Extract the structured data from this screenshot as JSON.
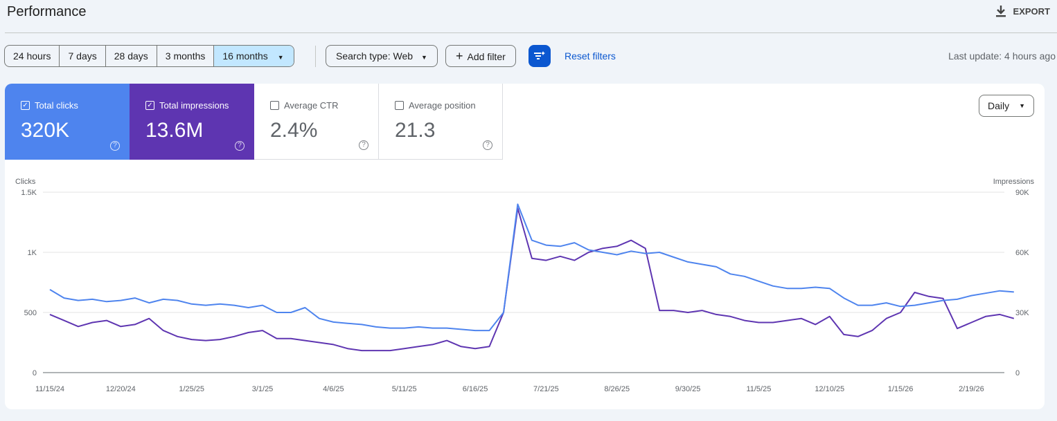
{
  "header": {
    "title": "Performance",
    "export_label": "EXPORT"
  },
  "filters": {
    "ranges": [
      "24 hours",
      "7 days",
      "28 days",
      "3 months",
      "16 months"
    ],
    "selected_range": "16 months",
    "search_type": "Search type: Web",
    "add_filter": "Add filter",
    "reset": "Reset filters",
    "last_update": "Last update: 4 hours ago"
  },
  "metrics": [
    {
      "label": "Total clicks",
      "value": "320K",
      "checked": true,
      "color": "#4e84ee"
    },
    {
      "label": "Total impressions",
      "value": "13.6M",
      "checked": true,
      "color": "#5e35b1"
    },
    {
      "label": "Average CTR",
      "value": "2.4%",
      "checked": false
    },
    {
      "label": "Average position",
      "value": "21.3",
      "checked": false
    }
  ],
  "granularity": "Daily",
  "chart_data": {
    "type": "line",
    "left_axis_label": "Clicks",
    "right_axis_label": "Impressions",
    "left_ticks": [
      "0",
      "500",
      "1K",
      "1.5K"
    ],
    "left_range": [
      0,
      1500
    ],
    "right_ticks": [
      "0",
      "30K",
      "60K",
      "90K"
    ],
    "right_range": [
      0,
      90000
    ],
    "x_ticks": [
      "11/15/24",
      "12/20/24",
      "1/25/25",
      "3/1/25",
      "4/6/25",
      "5/11/25",
      "6/16/25",
      "7/21/25",
      "8/26/25",
      "9/30/25",
      "11/5/25",
      "12/10/25",
      "1/15/26",
      "2/19/26"
    ],
    "x_start": "11/15/24",
    "x_interval_days": 7,
    "series": [
      {
        "name": "Clicks",
        "axis": "left",
        "color": "#4e84ee",
        "values": [
          690,
          620,
          600,
          610,
          590,
          600,
          620,
          580,
          610,
          600,
          570,
          560,
          570,
          560,
          540,
          560,
          500,
          500,
          540,
          450,
          420,
          410,
          400,
          380,
          370,
          370,
          380,
          370,
          370,
          360,
          350,
          350,
          500,
          1400,
          1100,
          1060,
          1050,
          1080,
          1020,
          1000,
          980,
          1010,
          990,
          1000,
          960,
          920,
          900,
          880,
          820,
          800,
          760,
          720,
          700,
          700,
          710,
          700,
          620,
          560,
          560,
          580,
          550,
          560,
          580,
          600,
          610,
          640,
          660,
          680,
          670
        ]
      },
      {
        "name": "Impressions",
        "axis": "right",
        "color": "#5e35b1",
        "values": [
          29000,
          26000,
          23000,
          25000,
          26000,
          23000,
          24000,
          27000,
          21000,
          18000,
          16500,
          16000,
          16500,
          18000,
          20000,
          21000,
          17000,
          17000,
          16000,
          15000,
          14000,
          12000,
          11000,
          11000,
          11000,
          12000,
          13000,
          14000,
          16000,
          13000,
          12000,
          13000,
          30000,
          82000,
          57000,
          56000,
          58000,
          56000,
          60000,
          62000,
          63000,
          66000,
          62000,
          31000,
          31000,
          30000,
          31000,
          29000,
          28000,
          26000,
          25000,
          25000,
          26000,
          27000,
          24000,
          28000,
          19000,
          18000,
          21000,
          27000,
          30000,
          40000,
          38000,
          37000,
          22000,
          25000,
          28000,
          29000,
          27000
        ]
      }
    ]
  }
}
